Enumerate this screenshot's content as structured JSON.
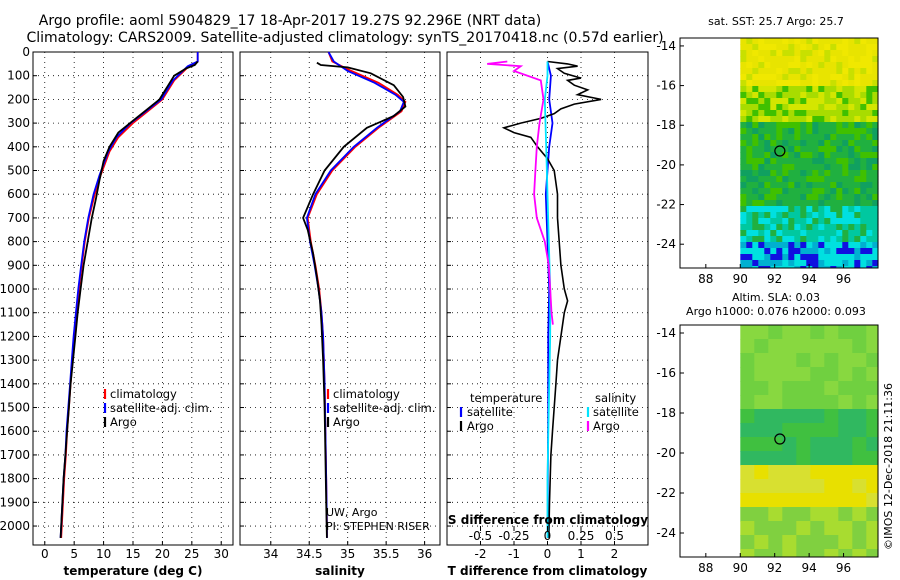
{
  "title": {
    "line1": "Argo profile: aoml 5904829_17 18-Apr-2017 19.27S 92.296E (NRT data)",
    "line2": "Climatology: CARS2009. Satellite-adjusted climatology: synTS_20170418.nc (0.57d earlier)"
  },
  "colors": {
    "climatology": "#ff0000",
    "satellite": "#0000ff",
    "argo": "#000000",
    "sat_salinity": "#00e5ff",
    "argo_salinity": "#ff00ff"
  },
  "chart_data": [
    {
      "type": "line",
      "id": "temperature",
      "xlabel": "temperature (deg C)",
      "ylabel": "",
      "xlim": [
        -2,
        32
      ],
      "ylim": [
        2080,
        0
      ],
      "xticks": [
        0,
        5,
        10,
        15,
        20,
        25,
        30
      ],
      "yticks": [
        0,
        100,
        200,
        300,
        400,
        500,
        600,
        700,
        800,
        900,
        1000,
        1100,
        1200,
        1300,
        1400,
        1500,
        1600,
        1700,
        1800,
        1900,
        2000
      ],
      "legend": [
        "climatology",
        "satellite-adj. clim.",
        "Argo"
      ],
      "series": [
        {
          "name": "climatology",
          "color": "#ff0000",
          "points": [
            [
              26,
              0
            ],
            [
              26,
              40
            ],
            [
              24.5,
              60
            ],
            [
              22,
              120
            ],
            [
              20,
              200
            ],
            [
              17.5,
              250
            ],
            [
              15,
              300
            ],
            [
              12.5,
              360
            ],
            [
              11,
              420
            ],
            [
              9.5,
              520
            ],
            [
              8.5,
              600
            ],
            [
              7.5,
              700
            ],
            [
              6.8,
              800
            ],
            [
              6.3,
              900
            ],
            [
              5.8,
              1000
            ],
            [
              5.4,
              1100
            ],
            [
              5.0,
              1200
            ],
            [
              4.7,
              1300
            ],
            [
              4.4,
              1400
            ],
            [
              4.1,
              1500
            ],
            [
              3.8,
              1600
            ],
            [
              3.6,
              1700
            ],
            [
              3.3,
              1800
            ],
            [
              3.1,
              1900
            ],
            [
              2.9,
              2000
            ],
            [
              2.8,
              2050
            ]
          ]
        },
        {
          "name": "satellite-adj. clim.",
          "color": "#0000ff",
          "points": [
            [
              26,
              0
            ],
            [
              26,
              40
            ],
            [
              24.3,
              60
            ],
            [
              21.8,
              120
            ],
            [
              19.8,
              200
            ],
            [
              17.2,
              250
            ],
            [
              14.6,
              300
            ],
            [
              12.2,
              360
            ],
            [
              10.8,
              420
            ],
            [
              9.3,
              520
            ],
            [
              8.3,
              600
            ],
            [
              7.4,
              700
            ],
            [
              6.7,
              800
            ],
            [
              6.2,
              900
            ],
            [
              5.7,
              1000
            ],
            [
              5.3,
              1100
            ],
            [
              4.9,
              1200
            ],
            [
              4.6,
              1300
            ],
            [
              4.3,
              1400
            ],
            [
              4.0,
              1500
            ],
            [
              3.7,
              1600
            ],
            [
              3.5,
              1700
            ],
            [
              3.2,
              1800
            ],
            [
              3.0,
              1900
            ],
            [
              2.8,
              2000
            ],
            [
              2.7,
              2050
            ]
          ]
        },
        {
          "name": "Argo",
          "color": "#000000",
          "points": [
            [
              26,
              40
            ],
            [
              25.5,
              55
            ],
            [
              24,
              70
            ],
            [
              22,
              100
            ],
            [
              21,
              140
            ],
            [
              20.5,
              160
            ],
            [
              19.5,
              200
            ],
            [
              17.5,
              240
            ],
            [
              15,
              290
            ],
            [
              12.5,
              340
            ],
            [
              11,
              400
            ],
            [
              10,
              460
            ],
            [
              9.3,
              540
            ],
            [
              8.7,
              620
            ],
            [
              8,
              700
            ],
            [
              7.3,
              800
            ],
            [
              6.6,
              900
            ],
            [
              6.1,
              1000
            ],
            [
              5.6,
              1100
            ],
            [
              5.2,
              1200
            ],
            [
              4.8,
              1300
            ],
            [
              4.4,
              1400
            ],
            [
              4.1,
              1500
            ],
            [
              3.8,
              1600
            ],
            [
              3.5,
              1700
            ],
            [
              3.2,
              1800
            ],
            [
              3.0,
              1900
            ],
            [
              2.8,
              2000
            ],
            [
              2.7,
              2050
            ]
          ]
        }
      ]
    },
    {
      "type": "line",
      "id": "salinity",
      "xlabel": "salinity",
      "xlim": [
        33.6,
        36.2
      ],
      "ylim": [
        2080,
        0
      ],
      "xticks": [
        34,
        34.5,
        35,
        35.5,
        36
      ],
      "legend": [
        "climatology",
        "satellite-adj. clim.",
        "Argo"
      ],
      "annotation": [
        "UW, Argo",
        "PI: STEPHEN RISER"
      ],
      "series": [
        {
          "name": "climatology",
          "color": "#ff0000",
          "points": [
            [
              34.75,
              0
            ],
            [
              34.8,
              40
            ],
            [
              35.05,
              80
            ],
            [
              35.4,
              130
            ],
            [
              35.65,
              180
            ],
            [
              35.75,
              210
            ],
            [
              35.7,
              250
            ],
            [
              35.4,
              320
            ],
            [
              35.1,
              400
            ],
            [
              34.8,
              500
            ],
            [
              34.6,
              600
            ],
            [
              34.48,
              700
            ],
            [
              34.52,
              800
            ],
            [
              34.58,
              900
            ],
            [
              34.63,
              1000
            ],
            [
              34.66,
              1100
            ],
            [
              34.68,
              1200
            ],
            [
              34.7,
              1400
            ],
            [
              34.71,
              1600
            ],
            [
              34.72,
              1800
            ],
            [
              34.73,
              2000
            ],
            [
              34.73,
              2050
            ]
          ]
        },
        {
          "name": "satellite-adj. clim.",
          "color": "#0000ff",
          "points": [
            [
              34.75,
              0
            ],
            [
              34.82,
              40
            ],
            [
              35.0,
              80
            ],
            [
              35.35,
              130
            ],
            [
              35.62,
              180
            ],
            [
              35.73,
              210
            ],
            [
              35.68,
              250
            ],
            [
              35.38,
              320
            ],
            [
              35.08,
              400
            ],
            [
              34.78,
              500
            ],
            [
              34.58,
              600
            ],
            [
              34.47,
              700
            ],
            [
              34.51,
              800
            ],
            [
              34.57,
              900
            ],
            [
              34.62,
              1000
            ],
            [
              34.66,
              1100
            ],
            [
              34.68,
              1200
            ],
            [
              34.7,
              1400
            ],
            [
              34.71,
              1600
            ],
            [
              34.72,
              1800
            ],
            [
              34.73,
              2000
            ],
            [
              34.73,
              2050
            ]
          ]
        },
        {
          "name": "Argo",
          "color": "#000000",
          "points": [
            [
              34.6,
              45
            ],
            [
              34.65,
              55
            ],
            [
              35.0,
              65
            ],
            [
              35.3,
              90
            ],
            [
              35.6,
              140
            ],
            [
              35.72,
              190
            ],
            [
              35.75,
              230
            ],
            [
              35.6,
              270
            ],
            [
              35.25,
              320
            ],
            [
              34.95,
              400
            ],
            [
              34.7,
              500
            ],
            [
              34.55,
              600
            ],
            [
              34.42,
              700
            ],
            [
              34.48,
              750
            ],
            [
              34.55,
              850
            ],
            [
              34.6,
              950
            ],
            [
              34.64,
              1050
            ],
            [
              34.66,
              1150
            ],
            [
              34.68,
              1300
            ],
            [
              34.7,
              1500
            ],
            [
              34.71,
              1700
            ],
            [
              34.72,
              1900
            ],
            [
              34.73,
              2050
            ]
          ]
        }
      ]
    },
    {
      "type": "line",
      "id": "difference",
      "xlabel": "T difference from climatology",
      "xlabel2": "S difference from climatology",
      "xlim": [
        -3,
        3
      ],
      "ylim": [
        2080,
        0
      ],
      "xticks": [
        -2,
        -1,
        0,
        1,
        2
      ],
      "xtick_labels": [
        "-2",
        "-1",
        "0",
        "1",
        "2"
      ],
      "s_xticks": [
        -0.5,
        -0.25,
        0,
        0.25,
        0.5
      ],
      "s_xtick_labels": [
        "-0.5",
        "-0.25",
        "0",
        "0.25",
        "0.5"
      ],
      "legend_temperature": {
        "header": "temperature",
        "items": [
          "satellite",
          "Argo"
        ]
      },
      "legend_salinity": {
        "header": "salinity",
        "items": [
          "satellite",
          "Argo"
        ]
      },
      "series": [
        {
          "name": "T satellite",
          "color": "#0000ff",
          "points": [
            [
              0,
              40
            ],
            [
              0.1,
              100
            ],
            [
              0.05,
              200
            ],
            [
              0.15,
              300
            ],
            [
              0.05,
              400
            ],
            [
              -0.05,
              600
            ],
            [
              0,
              800
            ],
            [
              0.05,
              1000
            ],
            [
              0.02,
              1200
            ],
            [
              0.02,
              1500
            ],
            [
              0.01,
              1800
            ],
            [
              0.01,
              2050
            ]
          ]
        },
        {
          "name": "T Argo",
          "color": "#000000",
          "points": [
            [
              0,
              40
            ],
            [
              0.6,
              50
            ],
            [
              0.9,
              60
            ],
            [
              0.3,
              70
            ],
            [
              0.5,
              90
            ],
            [
              1.0,
              110
            ],
            [
              0.6,
              120
            ],
            [
              0.8,
              140
            ],
            [
              1.2,
              160
            ],
            [
              0.9,
              180
            ],
            [
              1.6,
              200
            ],
            [
              0.8,
              220
            ],
            [
              0.4,
              240
            ],
            [
              0.2,
              260
            ],
            [
              -0.2,
              280
            ],
            [
              -0.8,
              300
            ],
            [
              -1.3,
              320
            ],
            [
              -1.0,
              340
            ],
            [
              -0.5,
              360
            ],
            [
              -0.3,
              400
            ],
            [
              0,
              450
            ],
            [
              0.2,
              500
            ],
            [
              0.3,
              600
            ],
            [
              0.3,
              700
            ],
            [
              0.35,
              800
            ],
            [
              0.4,
              900
            ],
            [
              0.5,
              1000
            ],
            [
              0.6,
              1050
            ],
            [
              0.5,
              1100
            ],
            [
              0.4,
              1200
            ],
            [
              0.3,
              1300
            ],
            [
              0.25,
              1400
            ],
            [
              0.2,
              1500
            ],
            [
              0.15,
              1600
            ],
            [
              0.1,
              1700
            ],
            [
              0.08,
              1800
            ],
            [
              0.06,
              1900
            ],
            [
              0.04,
              2050
            ]
          ]
        },
        {
          "name": "S satellite",
          "color": "#00e5ff",
          "points": [
            [
              0,
              40
            ],
            [
              0,
              100
            ],
            [
              -0.02,
              200
            ],
            [
              -0.01,
              400
            ],
            [
              0,
              600
            ],
            [
              0.01,
              800
            ],
            [
              0.02,
              1000
            ],
            [
              0.02,
              1200
            ],
            [
              0.01,
              1500
            ],
            [
              0.0,
              1800
            ],
            [
              0.0,
              2050
            ]
          ]
        },
        {
          "name": "S Argo",
          "color": "#ff00ff",
          "points": [
            [
              -0.3,
              40
            ],
            [
              -0.45,
              50
            ],
            [
              -0.2,
              60
            ],
            [
              -0.25,
              80
            ],
            [
              -0.05,
              120
            ],
            [
              -0.03,
              200
            ],
            [
              -0.06,
              300
            ],
            [
              -0.08,
              400
            ],
            [
              -0.09,
              500
            ],
            [
              -0.1,
              600
            ],
            [
              -0.08,
              700
            ],
            [
              -0.02,
              800
            ],
            [
              0.01,
              900
            ],
            [
              0.02,
              1000
            ],
            [
              0.03,
              1100
            ],
            [
              0.04,
              1150
            ]
          ]
        }
      ]
    },
    {
      "type": "heatmap",
      "id": "sst-map",
      "title": "sat. SST: 25.7 Argo: 25.7",
      "xlim": [
        86.5,
        98
      ],
      "ylim": [
        -25.2,
        -13.6
      ],
      "xticks": [
        88,
        90,
        92,
        94,
        96
      ],
      "yticks": [
        -14,
        -16,
        -18,
        -20,
        -22,
        -24
      ],
      "marker": [
        92.3,
        -19.3
      ]
    },
    {
      "type": "heatmap",
      "id": "sla-map",
      "title_line1": "Altim. SLA: 0.03",
      "title_line2": "Argo h1000: 0.076 h2000: 0.093",
      "xlim": [
        86.5,
        98
      ],
      "ylim": [
        -25.2,
        -13.6
      ],
      "xticks": [
        88,
        90,
        92,
        94,
        96
      ],
      "yticks": [
        -14,
        -16,
        -18,
        -20,
        -22,
        -24
      ],
      "marker": [
        92.3,
        -19.3
      ]
    }
  ],
  "footer": "©IMOS 12-Dec-2018 21:11:36"
}
